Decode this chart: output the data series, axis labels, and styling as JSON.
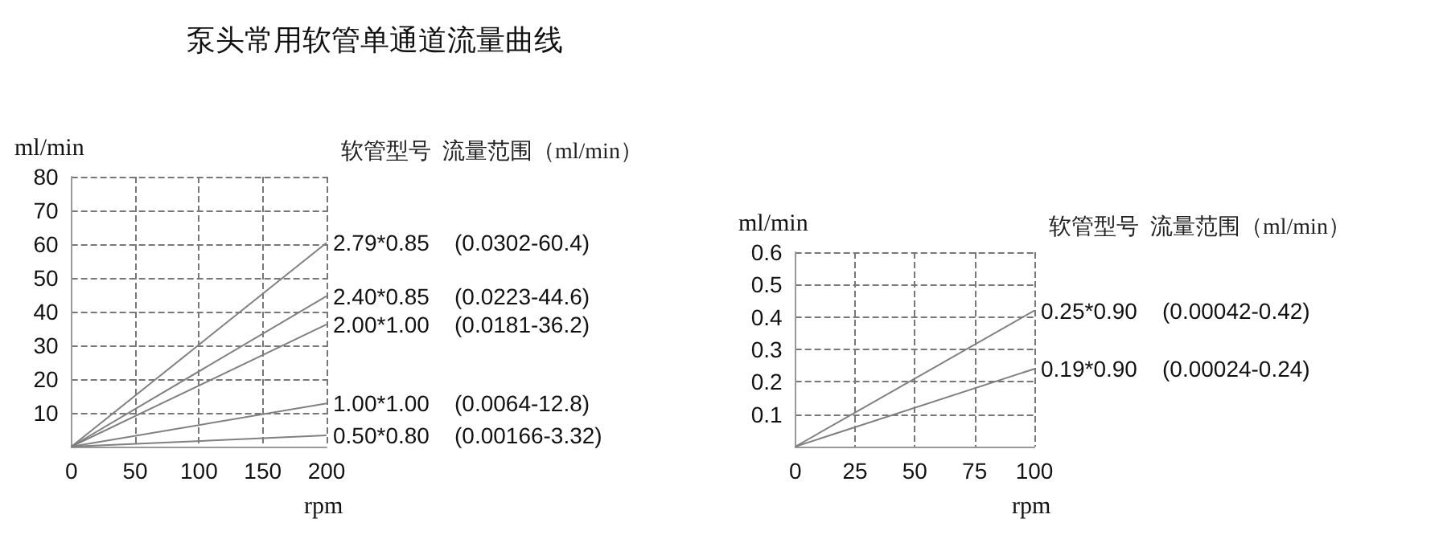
{
  "chart_data": [
    {
      "type": "line",
      "title": "泵头常用软管单通道流量曲线",
      "xlabel": "rpm",
      "ylabel": "ml/min",
      "legend_title": "软管型号  流量范围（ml/min）",
      "x": [
        0,
        200
      ],
      "xlim": [
        0,
        200
      ],
      "xticks": [
        0,
        50,
        100,
        150,
        200
      ],
      "ylim": [
        0,
        80
      ],
      "yticks": [
        10,
        20,
        30,
        40,
        50,
        60,
        70,
        80
      ],
      "grid": true,
      "marker": "none",
      "series": [
        {
          "name": "2.79*0.85    (0.0302-60.4)",
          "color": "#808080",
          "values": [
            0,
            60.4
          ]
        },
        {
          "name": "2.40*0.85    (0.0223-44.6)",
          "color": "#808080",
          "values": [
            0,
            44.6
          ]
        },
        {
          "name": "2.00*1.00    (0.0181-36.2)",
          "color": "#808080",
          "values": [
            0,
            36.2
          ]
        },
        {
          "name": "1.00*1.00    (0.0064-12.8)",
          "color": "#808080",
          "values": [
            0,
            12.8
          ]
        },
        {
          "name": "0.50*0.80    (0.00166-3.32)",
          "color": "#808080",
          "values": [
            0,
            3.32
          ]
        }
      ]
    },
    {
      "type": "line",
      "xlabel": "rpm",
      "ylabel": "ml/min",
      "legend_title": "软管型号  流量范围（ml/min）",
      "x": [
        0,
        100
      ],
      "xlim": [
        0,
        100
      ],
      "xticks": [
        0,
        25,
        50,
        75,
        100
      ],
      "ylim": [
        0,
        0.6
      ],
      "yticks": [
        0.1,
        0.2,
        0.3,
        0.4,
        0.5,
        0.6
      ],
      "grid": true,
      "marker": "none",
      "series": [
        {
          "name": "0.25*0.90    (0.00042-0.42)",
          "color": "#808080",
          "values": [
            0,
            0.42
          ]
        },
        {
          "name": "0.19*0.90    (0.00024-0.24)",
          "color": "#808080",
          "values": [
            0,
            0.24
          ]
        }
      ]
    }
  ]
}
